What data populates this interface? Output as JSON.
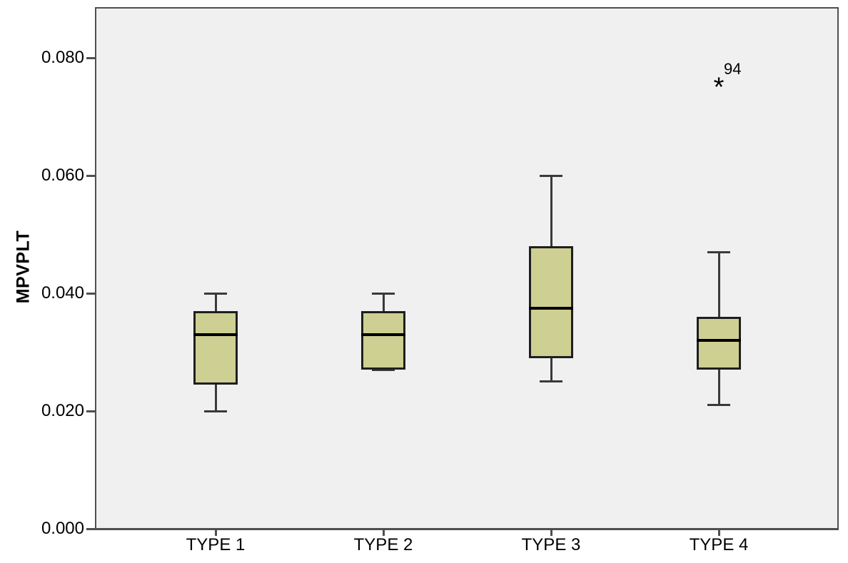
{
  "chart_data": {
    "type": "boxplot",
    "title": "",
    "xlabel": "",
    "ylabel": "MPVPLT",
    "ylim": [
      0,
      0.089
    ],
    "grid": false,
    "legend_position": "none",
    "y_ticks": [
      {
        "value": 0.0,
        "label": "0.000"
      },
      {
        "value": 0.02,
        "label": "0.020"
      },
      {
        "value": 0.04,
        "label": "0.040"
      },
      {
        "value": 0.06,
        "label": "0.060"
      },
      {
        "value": 0.08,
        "label": "0.080"
      }
    ],
    "categories": [
      "TYPE 1",
      "TYPE 2",
      "TYPE 3",
      "TYPE 4"
    ],
    "series": [
      {
        "category": "TYPE 1",
        "whisker_low": 0.02,
        "q1": 0.0245,
        "median": 0.033,
        "q3": 0.037,
        "whisker_high": 0.04,
        "outliers": []
      },
      {
        "category": "TYPE 2",
        "whisker_low": 0.027,
        "q1": 0.027,
        "median": 0.033,
        "q3": 0.037,
        "whisker_high": 0.04,
        "outliers": []
      },
      {
        "category": "TYPE 3",
        "whisker_low": 0.025,
        "q1": 0.029,
        "median": 0.0375,
        "q3": 0.048,
        "whisker_high": 0.06,
        "outliers": []
      },
      {
        "category": "TYPE 4",
        "whisker_low": 0.021,
        "q1": 0.027,
        "median": 0.032,
        "q3": 0.036,
        "whisker_high": 0.047,
        "outliers": [
          {
            "value": 0.076,
            "label": "94",
            "marker": "*",
            "kind": "extreme"
          }
        ]
      }
    ],
    "styles": {
      "box_fill": "#CED093",
      "box_border": "#1F1F1F",
      "median_color": "#000000",
      "whisker_color": "#3A3A3A",
      "plot_background": "#F0F0F0",
      "plot_border": "#4F4F4F",
      "outer_background": "#FFFFFF",
      "text_color": "#000000"
    }
  }
}
